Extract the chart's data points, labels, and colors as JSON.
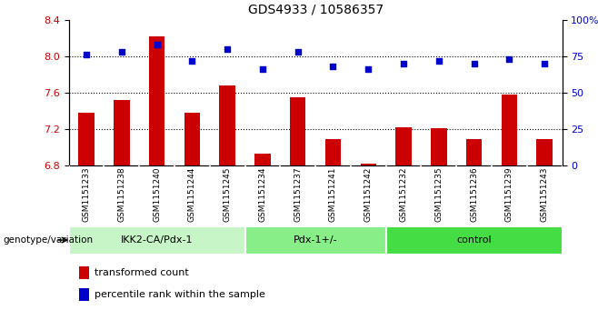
{
  "title": "GDS4933 / 10586357",
  "samples": [
    "GSM1151233",
    "GSM1151238",
    "GSM1151240",
    "GSM1151244",
    "GSM1151245",
    "GSM1151234",
    "GSM1151237",
    "GSM1151241",
    "GSM1151242",
    "GSM1151232",
    "GSM1151235",
    "GSM1151236",
    "GSM1151239",
    "GSM1151243"
  ],
  "red_values": [
    7.38,
    7.52,
    8.22,
    7.38,
    7.68,
    6.93,
    7.55,
    7.09,
    6.82,
    7.22,
    7.21,
    7.09,
    7.58,
    7.09
  ],
  "blue_values": [
    76,
    78,
    83,
    72,
    80,
    66,
    78,
    68,
    66,
    70,
    72,
    70,
    73,
    70
  ],
  "groups": [
    {
      "label": "IKK2-CA/Pdx-1",
      "start": 0,
      "end": 5,
      "color": "#c8f5c8"
    },
    {
      "label": "Pdx-1+/-",
      "start": 5,
      "end": 9,
      "color": "#88ee88"
    },
    {
      "label": "control",
      "start": 9,
      "end": 14,
      "color": "#44dd44"
    }
  ],
  "ylim_left": [
    6.8,
    8.4
  ],
  "ylim_right": [
    0,
    100
  ],
  "yticks_left": [
    6.8,
    7.2,
    7.6,
    8.0,
    8.4
  ],
  "yticks_right": [
    0,
    25,
    50,
    75,
    100
  ],
  "ytick_labels_right": [
    "0",
    "25",
    "50",
    "75",
    "100%"
  ],
  "hlines": [
    7.2,
    7.6,
    8.0
  ],
  "bar_color": "#cc0000",
  "dot_color": "#0000cc",
  "legend_items": [
    {
      "color": "#cc0000",
      "label": "transformed count"
    },
    {
      "color": "#0000cc",
      "label": "percentile rank within the sample"
    }
  ],
  "genotype_label": "genotype/variation",
  "xtick_bg": "#d8d8d8",
  "background_color": "#ffffff"
}
